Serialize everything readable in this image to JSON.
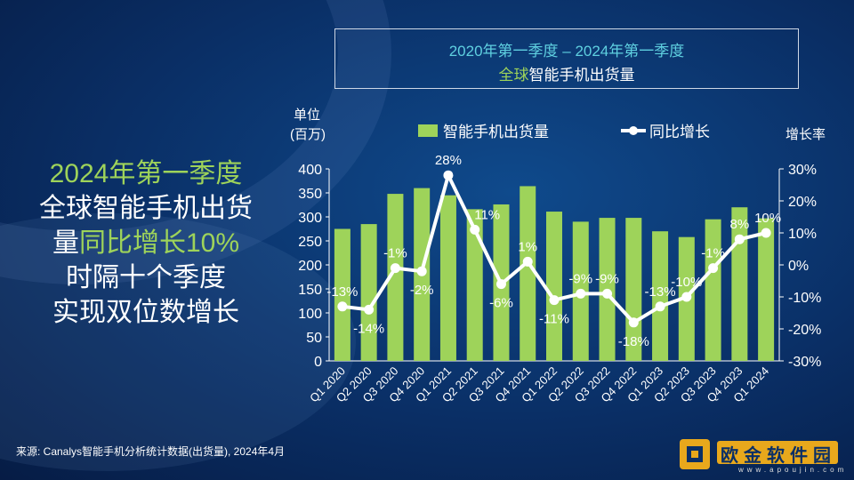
{
  "title": {
    "line1": "2020年第一季度 – 2024年第一季度",
    "line2_green": "全球",
    "line2_rest": "智能手机出货量"
  },
  "headline": {
    "line1": "2024年第一季度",
    "line2": "全球智能手机出货",
    "line3_a": "量",
    "line3_green": "同比增长10%",
    "line4": "时隔十个季度",
    "line5": "实现双位数增长"
  },
  "source": "来源: Canalys智能手机分析统计数据(出货量), 2024年4月",
  "watermark": {
    "text": "欧金软件园",
    "url": "www.apoujin.com"
  },
  "colors": {
    "bar": "#9ed35a",
    "line": "#ffffff",
    "background": "#0a2f66",
    "accent_cyan": "#5fd0e0"
  },
  "chart_data": {
    "type": "bar+line",
    "categories": [
      "Q1 2020",
      "Q2 2020",
      "Q3 2020",
      "Q4 2020",
      "Q1 2021",
      "Q2 2021",
      "Q3 2021",
      "Q4 2021",
      "Q1 2022",
      "Q2 2022",
      "Q3 2022",
      "Q4 2022",
      "Q1 2023",
      "Q2 2023",
      "Q3 2023",
      "Q4 2023",
      "Q1 2024"
    ],
    "series": [
      {
        "name": "智能手机出货量",
        "type": "bar",
        "axis": "left",
        "values": [
          275,
          285,
          348,
          360,
          345,
          316,
          326,
          364,
          311,
          290,
          298,
          298,
          270,
          258,
          295,
          320,
          297
        ]
      },
      {
        "name": "同比增长",
        "type": "line",
        "axis": "right",
        "values": [
          -13,
          -14,
          -1,
          -2,
          28,
          11,
          -6,
          1,
          -11,
          -9,
          -9,
          -18,
          -13,
          -10,
          -1,
          8,
          10
        ],
        "labels": [
          "-13%",
          "-14%",
          "-1%",
          "-2%",
          "28%",
          "11%",
          "-6%",
          "1%",
          "-11%",
          "-9%",
          "-9%",
          "-18%",
          "-13%",
          "-10%",
          "-1%",
          "8%",
          "10%"
        ]
      }
    ],
    "ylabel_left": [
      "单位",
      "(百万)"
    ],
    "ylabel_right": "增长率",
    "ylim_left": [
      0,
      400
    ],
    "yticks_left": [
      "0",
      "50",
      "100",
      "150",
      "200",
      "250",
      "300",
      "350",
      "400"
    ],
    "ylim_right": [
      -30,
      30
    ],
    "yticks_right": [
      "-30%",
      "-20%",
      "-10%",
      "0%",
      "10%",
      "20%",
      "30%"
    ],
    "legend_position": "top",
    "grid": false
  }
}
